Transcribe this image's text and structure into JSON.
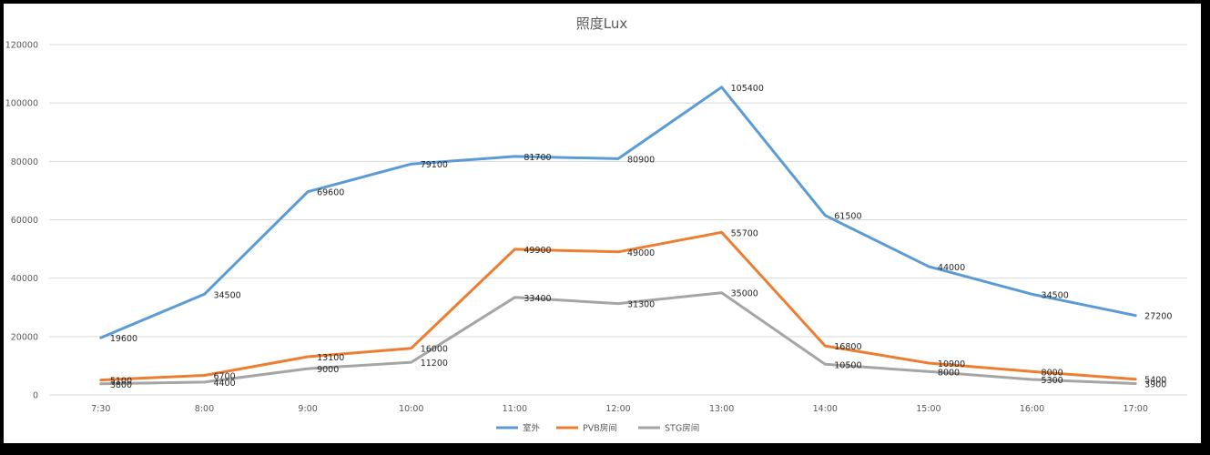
{
  "chart_data": {
    "type": "line",
    "title": "照度Lux",
    "xlabel": "",
    "ylabel": "",
    "categories": [
      "7:30",
      "8:00",
      "9:00",
      "10:00",
      "11:00",
      "12:00",
      "13:00",
      "14:00",
      "15:00",
      "16:00",
      "17:00"
    ],
    "ylim": [
      0,
      120000
    ],
    "yticks": [
      0,
      20000,
      40000,
      60000,
      80000,
      100000,
      120000
    ],
    "grid": true,
    "legend_position": "bottom",
    "series": [
      {
        "name": "室外",
        "color": "#5B9BD5",
        "values": [
          19600,
          34500,
          69600,
          79100,
          81700,
          80900,
          105400,
          61500,
          44000,
          34500,
          27200
        ]
      },
      {
        "name": "PVB房间",
        "color": "#ED7D31",
        "values": [
          5100,
          6700,
          13100,
          16000,
          49900,
          49000,
          55700,
          16800,
          10900,
          8000,
          5400
        ]
      },
      {
        "name": "STG房间",
        "color": "#A5A5A5",
        "values": [
          3800,
          4400,
          9000,
          11200,
          33400,
          31300,
          35000,
          10500,
          8000,
          5300,
          3900
        ]
      }
    ]
  }
}
